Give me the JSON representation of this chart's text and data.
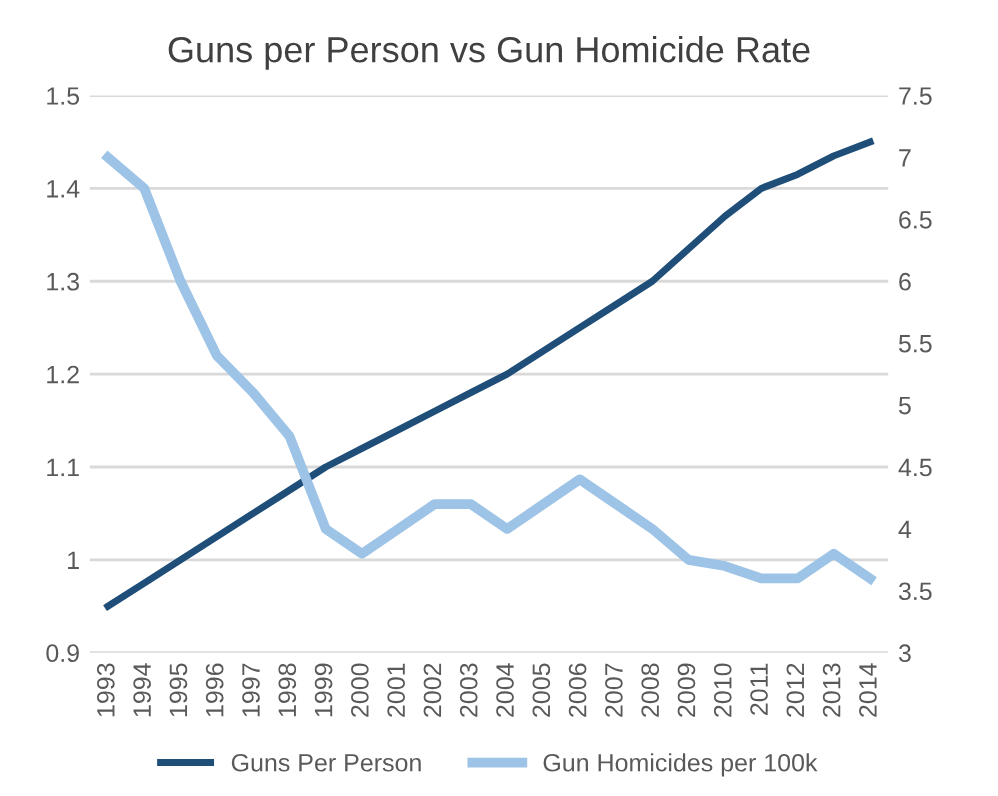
{
  "chart_data": {
    "type": "line",
    "title": "Guns per Person vs Gun Homicide Rate",
    "categories": [
      "1993",
      "1994",
      "1995",
      "1996",
      "1997",
      "1998",
      "1999",
      "2000",
      "2001",
      "2002",
      "2003",
      "2004",
      "2005",
      "2006",
      "2007",
      "2008",
      "2009",
      "2010",
      "2011",
      "2012",
      "2013",
      "2014"
    ],
    "series": [
      {
        "name": "Guns Per Person",
        "color": "#1f4e79",
        "values": [
          0.95,
          0.975,
          1.0,
          1.025,
          1.05,
          1.075,
          1.1,
          1.12,
          1.14,
          1.16,
          1.18,
          1.2,
          1.225,
          1.25,
          1.275,
          1.3,
          1.335,
          1.37,
          1.4,
          1.415,
          1.435,
          1.45
        ]
      },
      {
        "name": "Gun Homicides per 100k",
        "color": "#9dc3e6",
        "axis": "y2",
        "values": [
          7.0,
          6.75,
          6.0,
          5.4,
          5.1,
          4.75,
          4.0,
          3.8,
          4.0,
          4.2,
          4.2,
          4.0,
          4.2,
          4.4,
          4.2,
          4.0,
          3.75,
          3.7,
          3.6,
          3.6,
          3.8,
          3.6
        ]
      }
    ],
    "ylim": [
      0.9,
      1.5
    ],
    "yticks": [
      0.9,
      1,
      1.1,
      1.2,
      1.3,
      1.4,
      1.5
    ],
    "y2lim": [
      3,
      7.5
    ],
    "y2ticks": [
      3,
      3.5,
      4,
      4.5,
      5,
      5.5,
      6,
      6.5,
      7,
      7.5
    ],
    "grid": "y",
    "legend": "bottom",
    "marker": "none",
    "line_style": "solid"
  }
}
